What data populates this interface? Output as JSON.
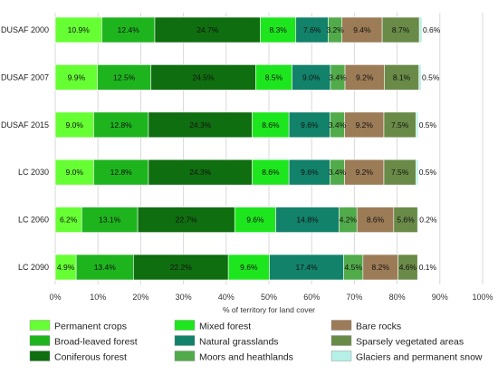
{
  "chart_data": {
    "type": "bar",
    "orientation": "horizontal",
    "stacked": true,
    "categories": [
      "DUSAF 2000",
      "DUSAF 2007",
      "DUSAF 2015",
      "LC 2030",
      "LC 2060",
      "LC 2090"
    ],
    "series": [
      {
        "name": "Permanent crops",
        "color": "#66ff33",
        "values": [
          10.9,
          9.9,
          9.0,
          9.0,
          6.2,
          4.9
        ],
        "labels": [
          "10.9%",
          "9.9%",
          "9.0%",
          "9.0%",
          "6.2%",
          "4.9%"
        ]
      },
      {
        "name": "Broad-leaved forest",
        "color": "#1eb41e",
        "values": [
          12.4,
          12.5,
          12.8,
          12.8,
          13.1,
          13.4
        ],
        "labels": [
          "12.4%",
          "12.5%",
          "12.8%",
          "12.8%",
          "13.1%",
          "13.4%"
        ]
      },
      {
        "name": "Coniferous forest",
        "color": "#0f6e0f",
        "values": [
          24.7,
          24.5,
          24.3,
          24.3,
          22.7,
          22.2
        ],
        "labels": [
          "24.7%",
          "24.5%",
          "24.3%",
          "24.3%",
          "22.7%",
          "22.2%"
        ]
      },
      {
        "name": "Mixed forest",
        "color": "#1ee61e",
        "values": [
          8.3,
          8.5,
          8.6,
          8.6,
          9.6,
          9.6
        ],
        "labels": [
          "8.3%",
          "8.5%",
          "8.6%",
          "8.6%",
          "9.6%",
          "9.6%"
        ]
      },
      {
        "name": "Natural grasslands",
        "color": "#12826a",
        "values": [
          7.6,
          9.0,
          9.6,
          9.6,
          14.8,
          17.4
        ],
        "labels": [
          "7.6%",
          "9.0%",
          "9.6%",
          "9.6%",
          "14.8%",
          "17.4%"
        ]
      },
      {
        "name": "Moors and heathlands",
        "color": "#52ab4a",
        "values": [
          3.2,
          3.4,
          3.4,
          3.4,
          4.2,
          4.5
        ],
        "labels": [
          "3.2%",
          "3.4%",
          "3.4%",
          "3.4%",
          "4.2%",
          "4.5%"
        ]
      },
      {
        "name": "Bare rocks",
        "color": "#9c7b57",
        "values": [
          9.4,
          9.2,
          9.2,
          9.2,
          8.6,
          8.2
        ],
        "labels": [
          "9.4%",
          "9.2%",
          "9.2%",
          "9.2%",
          "8.6%",
          "8.2%"
        ]
      },
      {
        "name": "Sparsely vegetated areas",
        "color": "#6a8a48",
        "values": [
          8.7,
          8.1,
          7.5,
          7.5,
          5.6,
          4.6
        ],
        "labels": [
          "8.7%",
          "8.1%",
          "7.5%",
          "7.5%",
          "5.6%",
          "4.6%"
        ]
      },
      {
        "name": "Glaciers and permanent snow",
        "color": "#b4f0e6",
        "values": [
          0.6,
          0.5,
          0.5,
          0.5,
          0.2,
          0.1
        ],
        "labels": [
          "0.6%",
          "0.5%",
          "0.5%",
          "0.5%",
          "0.2%",
          "0.1%"
        ]
      }
    ],
    "xlabel": "% of territory for land cover",
    "ylabel": "",
    "xlim": [
      0,
      100
    ],
    "xticks": [
      "0%",
      "10%",
      "20%",
      "30%",
      "40%",
      "50%",
      "60%",
      "70%",
      "80%",
      "90%",
      "100%"
    ],
    "grid": true,
    "legend_position": "bottom"
  }
}
